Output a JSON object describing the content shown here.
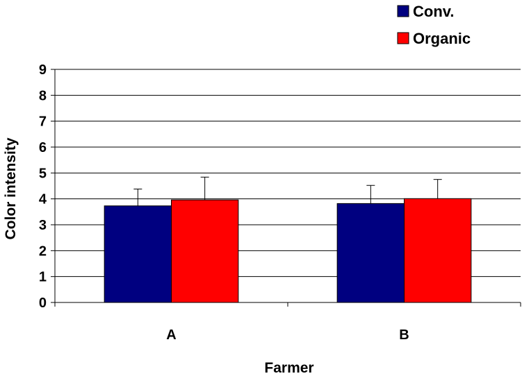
{
  "chart_data": {
    "type": "bar",
    "title": "",
    "xlabel": "Farmer",
    "ylabel": "Color intensity",
    "categories": [
      "A",
      "B"
    ],
    "ylim": [
      0,
      9
    ],
    "yticks": [
      "0",
      "1",
      "2",
      "3",
      "4",
      "5",
      "6",
      "7",
      "8",
      "9"
    ],
    "grid": true,
    "legend_position": "top-right",
    "series": [
      {
        "name": "Conv.",
        "color": "#000080",
        "values": [
          3.73,
          3.82
        ],
        "error_plus": [
          0.65,
          0.7
        ]
      },
      {
        "name": "Organic",
        "color": "#ff0000",
        "values": [
          3.96,
          4.01
        ],
        "error_plus": [
          0.88,
          0.74
        ]
      }
    ]
  }
}
